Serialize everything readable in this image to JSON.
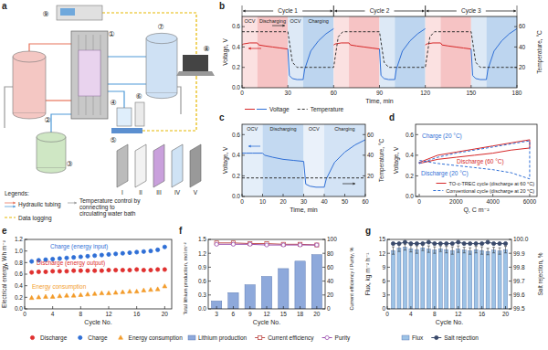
{
  "diagram": {
    "panel_label": "a",
    "components": [
      "①",
      "②",
      "③",
      "④",
      "⑤",
      "⑥",
      "⑦",
      "⑧",
      "⑨"
    ],
    "layers": [
      "I",
      "II",
      "III",
      "IV",
      "V"
    ],
    "legend_title": "Legends:",
    "legend": [
      {
        "label": "Hydraulic tubing",
        "colors": [
          "#e8735a",
          "#4f9ad8"
        ]
      },
      {
        "label": "Temperature control by connecting to circulating water bath",
        "color": "#9a9a9a"
      },
      {
        "label": "Data logging",
        "color": "#e6b800"
      }
    ]
  },
  "chart_data": [
    {
      "type": "line",
      "panel_label": "b",
      "x_label": "Time, min",
      "y_label": "Voltage, V",
      "y2_label": "Temperature, °C",
      "xlim": [
        0,
        180
      ],
      "xticks": [
        0,
        30,
        60,
        90,
        120,
        150,
        180
      ],
      "ylim": [
        0,
        0.7
      ],
      "yticks": [
        {
          "value": 0,
          "label": "0.0"
        },
        0.2,
        0.4,
        0.6
      ],
      "y2lim": [
        0,
        70
      ],
      "y2ticks": [
        20,
        40,
        60
      ],
      "grid": false,
      "legend": "bottom",
      "cycles": [
        {
          "label": "Cycle 1",
          "start": 0,
          "end": 60
        },
        {
          "label": "Cycle 2",
          "start": 60,
          "end": 120
        },
        {
          "label": "Cycle 3",
          "start": 120,
          "end": 180
        }
      ],
      "phases": [
        {
          "label": "OCV",
          "start": 0,
          "end": 10,
          "color": "#fbe1e1"
        },
        {
          "label": "Discharging",
          "start": 10,
          "end": 30,
          "color": "#f6c3c4"
        },
        {
          "label": "OCV",
          "start": 30,
          "end": 40,
          "color": "#dde9f6"
        },
        {
          "label": "Charging",
          "start": 40,
          "end": 60,
          "color": "#bdd5ef"
        },
        {
          "label": null,
          "start": 60,
          "end": 70,
          "color": "#fbe1e1"
        },
        {
          "label": null,
          "start": 70,
          "end": 90,
          "color": "#f6c3c4"
        },
        {
          "label": null,
          "start": 90,
          "end": 100,
          "color": "#dde9f6"
        },
        {
          "label": null,
          "start": 100,
          "end": 120,
          "color": "#bdd5ef"
        },
        {
          "label": null,
          "start": 120,
          "end": 130,
          "color": "#fbe1e1"
        },
        {
          "label": null,
          "start": 130,
          "end": 150,
          "color": "#f6c3c4"
        },
        {
          "label": null,
          "start": 150,
          "end": 160,
          "color": "#dde9f6"
        },
        {
          "label": null,
          "start": 160,
          "end": 180,
          "color": "#bdd5ef"
        }
      ],
      "series": [
        {
          "name": "Voltage",
          "color": "#d62728",
          "x": [
            0,
            1,
            5,
            10,
            11,
            15,
            20,
            25,
            30,
            45,
            60,
            61,
            65,
            70,
            71,
            75,
            80,
            85,
            90,
            105,
            120,
            121,
            125,
            130,
            131,
            135,
            140,
            145,
            150
          ],
          "values": [
            0.42,
            0.43,
            0.44,
            0.44,
            0.42,
            0.41,
            0.4,
            0.39,
            0.38,
            null,
            0.42,
            0.43,
            0.44,
            0.44,
            0.42,
            0.41,
            0.4,
            0.39,
            0.38,
            null,
            0.42,
            0.43,
            0.44,
            0.44,
            0.42,
            0.41,
            0.4,
            0.39,
            0.38
          ]
        },
        {
          "name": "Voltage",
          "color": "#2f6fd6",
          "x": [
            30,
            31,
            33,
            36,
            40,
            41,
            45,
            50,
            55,
            60,
            75,
            90,
            91,
            93,
            96,
            100,
            101,
            105,
            110,
            115,
            120,
            135,
            150,
            151,
            153,
            156,
            160,
            161,
            165,
            170,
            175,
            180
          ],
          "values": [
            0.38,
            0.12,
            0.09,
            0.08,
            0.08,
            0.18,
            0.36,
            0.46,
            0.53,
            0.58,
            null,
            0.38,
            0.12,
            0.09,
            0.08,
            0.08,
            0.18,
            0.36,
            0.46,
            0.53,
            0.58,
            null,
            0.38,
            0.12,
            0.09,
            0.08,
            0.08,
            0.18,
            0.36,
            0.46,
            0.53,
            0.58
          ]
        },
        {
          "name": "Temperature",
          "color": "#333333",
          "axis": "y2",
          "line_style": "dashed",
          "x": [
            0,
            30,
            33,
            36,
            60,
            63,
            66,
            90,
            93,
            96,
            120,
            123,
            126,
            150,
            153,
            156,
            180
          ],
          "values": [
            55,
            55,
            25,
            20,
            20,
            50,
            55,
            55,
            25,
            20,
            20,
            50,
            55,
            55,
            25,
            20,
            20
          ]
        }
      ]
    },
    {
      "type": "line",
      "panel_label": "c",
      "x_label": "Time, min",
      "y_label": "Voltage, V",
      "y2_label": "Temperature, °C",
      "xlim": [
        0,
        60
      ],
      "xticks": [
        0,
        10,
        20,
        30,
        40,
        50,
        60
      ],
      "ylim": [
        0,
        0.7
      ],
      "yticks": [
        {
          "value": 0,
          "label": "0.0"
        },
        0.2,
        0.4,
        0.6
      ],
      "y2lim": [
        0,
        70
      ],
      "y2ticks": [
        20,
        40,
        60
      ],
      "grid": false,
      "legend": false,
      "phases": [
        {
          "label": "OCV",
          "start": 0,
          "end": 10,
          "color": "#e4eef9"
        },
        {
          "label": "Discharging",
          "start": 10,
          "end": 30,
          "color": "#c3d9f1"
        },
        {
          "label": "OCV",
          "start": 30,
          "end": 40,
          "color": "#eaf1fa"
        },
        {
          "label": "Charging",
          "start": 40,
          "end": 60,
          "color": "#d3e3f5"
        }
      ],
      "series": [
        {
          "name": "Voltage",
          "color": "#2f6fd6",
          "x": [
            0,
            2,
            5,
            10,
            11,
            15,
            20,
            25,
            30,
            31,
            33,
            36,
            40,
            41,
            45,
            50,
            55,
            60
          ],
          "values": [
            0.42,
            0.42,
            0.42,
            0.42,
            0.4,
            0.38,
            0.36,
            0.35,
            0.34,
            0.12,
            0.1,
            0.09,
            0.09,
            0.17,
            0.33,
            0.43,
            0.5,
            0.55
          ]
        },
        {
          "name": "Temperature",
          "color": "#333333",
          "axis": "y2",
          "line_style": "dashed",
          "x": [
            0,
            60
          ],
          "values": [
            18,
            18
          ]
        }
      ]
    },
    {
      "type": "line",
      "panel_label": "d",
      "x_label": "Q, C m⁻²",
      "y_label": "Voltage, V",
      "xlim": [
        -200,
        6400
      ],
      "xticks": [
        0,
        2000,
        4000,
        6000
      ],
      "ylim": [
        0,
        0.7
      ],
      "yticks": [
        {
          "value": 0,
          "label": "0.0"
        },
        0.2,
        0.4,
        0.6
      ],
      "grid": false,
      "legend": "lower right",
      "series": [
        {
          "name": "TO-c-TREC cycle (discharge at 60 °C)",
          "color": "#d62728",
          "line_style": "solid",
          "x": [
            0,
            1000,
            2000,
            3000,
            4000,
            5000,
            6000,
            6000,
            5000,
            4000,
            3000,
            2000,
            1000,
            0,
            0
          ],
          "values": [
            0.33,
            0.4,
            0.43,
            0.46,
            0.49,
            0.52,
            0.55,
            0.47,
            0.45,
            0.42,
            0.4,
            0.38,
            0.36,
            0.32,
            0.33
          ]
        },
        {
          "name": "Conventional cycle (discharge at 20 °C)",
          "color": "#2f6fd6",
          "line_style": "dashed",
          "x": [
            0,
            1000,
            2000,
            3000,
            4000,
            5000,
            6000,
            6000,
            5000,
            4000,
            3000,
            2000,
            1000,
            0,
            0
          ],
          "values": [
            0.32,
            0.38,
            0.42,
            0.45,
            0.48,
            0.51,
            0.54,
            0.17,
            0.23,
            0.26,
            0.28,
            0.3,
            0.32,
            0.35,
            0.32
          ]
        }
      ],
      "annotations": [
        {
          "text": "Charge (20 °C)",
          "color": "#2f6fd6"
        },
        {
          "text": "Discharge (60 °C)",
          "color": "#d62728"
        },
        {
          "text": "Discharge (20 °C)",
          "color": "#2f6fd6"
        }
      ]
    },
    {
      "type": "scatter",
      "panel_label": "e",
      "x_label": "Cycle No.",
      "y_label": "Electrical energy, Wh m⁻²",
      "x": [
        1,
        2,
        3,
        4,
        5,
        6,
        7,
        8,
        9,
        10,
        11,
        12,
        13,
        14,
        15,
        16,
        17,
        18,
        19,
        20
      ],
      "xlim": [
        0,
        21
      ],
      "xticks": [
        0,
        4,
        8,
        12,
        16,
        20
      ],
      "ylim": [
        0,
        1.2
      ],
      "yticks": [
        {
          "value": 0,
          "label": "0.0"
        },
        0.2,
        0.4,
        0.6,
        0.8,
        {
          "value": 1,
          "label": "1.0"
        },
        1.2
      ],
      "grid": false,
      "legend": "bottom",
      "series": [
        {
          "name": "Discharge",
          "color": "#e0302f",
          "marker": "circle",
          "values": [
            0.63,
            0.64,
            0.64,
            0.65,
            0.65,
            0.65,
            0.66,
            0.66,
            0.66,
            0.66,
            0.66,
            0.67,
            0.67,
            0.67,
            0.67,
            0.68,
            0.67,
            0.67,
            0.68,
            0.68
          ]
        },
        {
          "name": "Charge",
          "color": "#2f6fd6",
          "marker": "circle",
          "values": [
            0.82,
            0.84,
            0.85,
            0.86,
            0.87,
            0.88,
            0.89,
            0.9,
            0.91,
            0.92,
            0.93,
            0.94,
            0.95,
            0.96,
            0.97,
            0.98,
            0.99,
            1.0,
            1.02,
            1.07
          ]
        },
        {
          "name": "Energy consumption",
          "color": "#f39c2b",
          "marker": "triangle",
          "values": [
            0.19,
            0.2,
            0.21,
            0.21,
            0.22,
            0.23,
            0.23,
            0.24,
            0.25,
            0.26,
            0.27,
            0.27,
            0.28,
            0.29,
            0.3,
            0.3,
            0.32,
            0.33,
            0.34,
            0.39
          ]
        }
      ],
      "annotations": [
        {
          "text": "Charge (energy input)",
          "color": "#2f6fd6"
        },
        {
          "text": "Discharge (energy output)",
          "color": "#e0302f"
        },
        {
          "text": "Energy consumption",
          "color": "#f39c2b"
        }
      ]
    },
    {
      "type": "bar",
      "panel_label": "f",
      "x_label": "Cycle No.",
      "y_label": "Total lithium production, mol m⁻²",
      "y2_label": "Current efficiency / Purity, %",
      "categories": [
        "3",
        "6",
        "9",
        "12",
        "15",
        "18",
        "20"
      ],
      "ylim": [
        0,
        1.5
      ],
      "yticks": [
        {
          "value": 0,
          "label": "0.0"
        },
        0.3,
        0.6,
        0.9,
        1.2,
        1.5
      ],
      "y2lim": [
        0,
        100
      ],
      "y2ticks": [
        0,
        20,
        40,
        60,
        80,
        100
      ],
      "grid": false,
      "legend": "bottom",
      "series": [
        {
          "name": "Lithium production",
          "type": "bar",
          "color": "#8ea9db",
          "values": [
            0.17,
            0.35,
            0.52,
            0.7,
            0.87,
            1.03,
            1.17
          ]
        },
        {
          "name": "Current efficiency",
          "type": "line",
          "axis": "y2",
          "color": "#c0504d",
          "marker": "square-open",
          "values": [
            95,
            95,
            94,
            94,
            93,
            93,
            92
          ]
        },
        {
          "name": "Purity",
          "type": "line",
          "axis": "y2",
          "color": "#9b4fb0",
          "marker": "circle-open",
          "values": [
            93,
            93,
            93,
            92,
            92,
            92,
            92
          ]
        }
      ]
    },
    {
      "type": "bar",
      "panel_label": "g",
      "x_label": "Cycle No.",
      "y_label": "Flux, kg m⁻² h⁻¹",
      "y2_label": "Salt rejection, %",
      "x": [
        1,
        2,
        3,
        4,
        5,
        6,
        7,
        8,
        9,
        10,
        11,
        12,
        13,
        14,
        15,
        16,
        17,
        18,
        19,
        20
      ],
      "xlim": [
        0,
        21
      ],
      "xticks": [
        0,
        4,
        8,
        12,
        16,
        20
      ],
      "ylim": [
        0,
        15
      ],
      "yticks": [
        0,
        3,
        6,
        9,
        12,
        15
      ],
      "y2lim": [
        99.5,
        100
      ],
      "y2ticks": [
        99.5,
        99.6,
        99.7,
        99.8,
        99.9,
        {
          "value": 100,
          "label": "100.0"
        }
      ],
      "grid": false,
      "legend": "bottom",
      "series": [
        {
          "name": "Flux",
          "type": "bar",
          "color": "#9dc3e6",
          "values": [
            12.6,
            13.1,
            13.3,
            13.0,
            12.8,
            13.2,
            12.9,
            12.7,
            13.0,
            12.8,
            12.6,
            12.9,
            12.7,
            12.5,
            12.8,
            12.6,
            12.4,
            12.7,
            12.5,
            12.8
          ],
          "errors": [
            0.8,
            0.7,
            0.6,
            0.7,
            0.8,
            0.6,
            0.7,
            0.7,
            0.6,
            0.7,
            0.8,
            0.7,
            0.6,
            0.7,
            0.7,
            0.8,
            0.7,
            0.6,
            0.7,
            0.7
          ]
        },
        {
          "name": "Salt rejection",
          "type": "line",
          "axis": "y2",
          "color": "#3a4a6b",
          "marker": "circle",
          "values": [
            99.97,
            99.97,
            99.98,
            99.97,
            99.97,
            99.97,
            99.98,
            99.97,
            99.97,
            99.97,
            99.97,
            99.98,
            99.97,
            99.97,
            99.97,
            99.97,
            99.98,
            99.97,
            99.97,
            99.97
          ]
        }
      ]
    }
  ]
}
